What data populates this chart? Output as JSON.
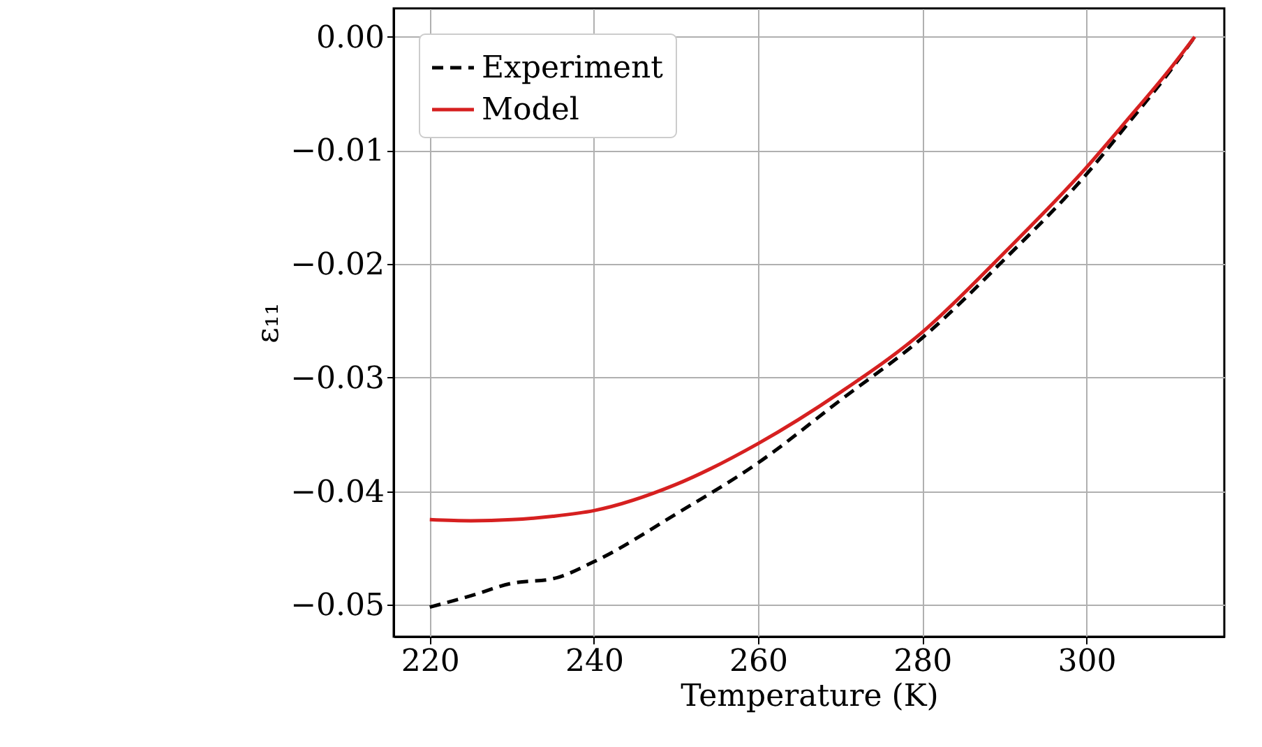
{
  "chart_data": {
    "type": "line",
    "xlabel": "Temperature (K)",
    "ylabel": "ε₁₁",
    "xlim": [
      215.6,
      316.8
    ],
    "ylim": [
      -0.0528,
      0.0025
    ],
    "xticks": [
      220,
      240,
      260,
      280,
      300
    ],
    "yticks": [
      {
        "value": 0,
        "label": "0.00"
      },
      {
        "value": -0.01,
        "label": "−0.01"
      },
      {
        "value": -0.02,
        "label": "−0.02"
      },
      {
        "value": -0.03,
        "label": "−0.03"
      },
      {
        "value": -0.04,
        "label": "−0.04"
      },
      {
        "value": -0.05,
        "label": "−0.05"
      }
    ],
    "grid": true,
    "legend": "top left",
    "series": [
      {
        "name": "Experiment",
        "color": "#000000",
        "line_style": "dashed",
        "x": [
          220,
          225,
          230,
          235,
          240,
          250,
          260,
          270,
          280,
          290,
          300,
          305,
          310,
          313.2
        ],
        "values": [
          -0.0502,
          -0.0492,
          -0.0481,
          -0.0477,
          -0.0462,
          -0.042,
          -0.0375,
          -0.032,
          -0.0265,
          -0.0196,
          -0.0121,
          -0.0077,
          -0.0032,
          0.0
        ]
      },
      {
        "name": "Model",
        "color": "#d62020",
        "line_style": "solid",
        "x": [
          220,
          225,
          230,
          235,
          240,
          250,
          260,
          270,
          280,
          290,
          300,
          305,
          310,
          313.2
        ],
        "values": [
          -0.0425,
          -0.0426,
          -0.0425,
          -0.0422,
          -0.0417,
          -0.0394,
          -0.0358,
          -0.0313,
          -0.026,
          -0.019,
          -0.0115,
          -0.0073,
          -0.003,
          0.0
        ]
      }
    ]
  }
}
